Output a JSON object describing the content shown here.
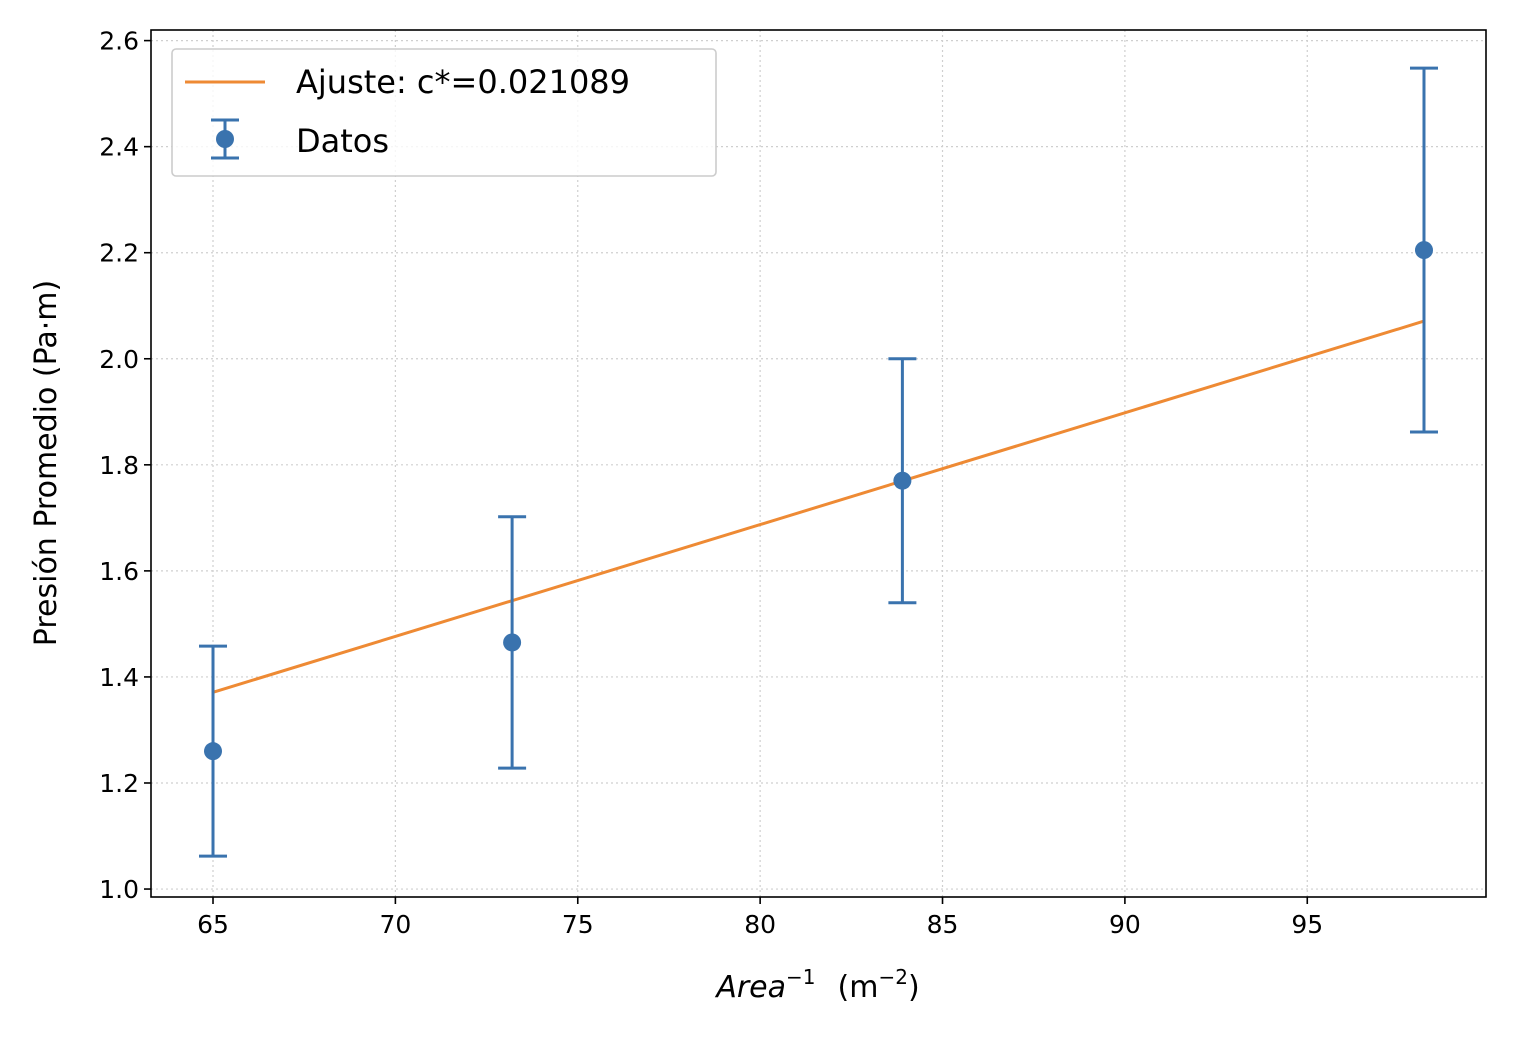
{
  "chart_data": {
    "type": "scatter",
    "title": "",
    "xlabel": {
      "var": "Area",
      "exp": "−1",
      "unit_open": "(m",
      "unit_exp": "−2",
      "unit_close": ")"
    },
    "ylabel": "Presión Promedio  (Pa·m)",
    "xlim": [
      63.3,
      99.9
    ],
    "ylim": [
      0.985,
      2.62
    ],
    "xticks": [
      65,
      70,
      75,
      80,
      85,
      90,
      95
    ],
    "xtick_labels": [
      "65",
      "70",
      "75",
      "80",
      "85",
      "90",
      "95"
    ],
    "yticks": [
      1.0,
      1.2,
      1.4,
      1.6,
      1.8,
      2.0,
      2.2,
      2.4,
      2.6
    ],
    "ytick_labels": [
      "1.0",
      "1.2",
      "1.4",
      "1.6",
      "1.8",
      "2.0",
      "2.2",
      "2.4",
      "2.6"
    ],
    "grid": true,
    "legend_position": "top-left",
    "series": [
      {
        "name": "Datos",
        "kind": "errorbar",
        "color": "#3a73ae",
        "x": [
          65.0,
          73.2,
          83.9,
          98.2
        ],
        "y": [
          1.26,
          1.465,
          1.77,
          2.205
        ],
        "yerr": [
          0.198,
          0.237,
          0.23,
          0.343
        ]
      },
      {
        "name": "Ajuste: c*=0.021089",
        "kind": "line",
        "color": "#ee8a34",
        "x": [
          65.0,
          98.2
        ],
        "y": [
          1.371,
          2.071
        ]
      }
    ]
  }
}
